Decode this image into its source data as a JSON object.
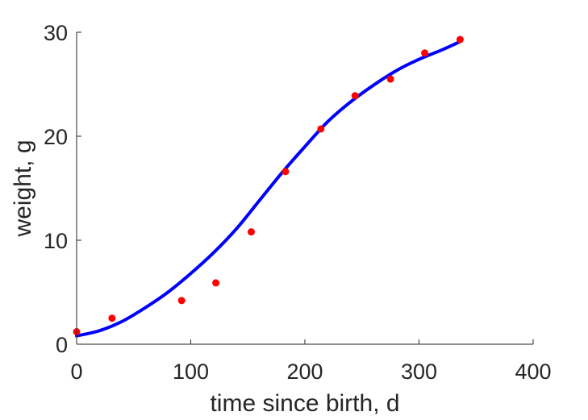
{
  "chart_data": {
    "type": "scatter",
    "title": "",
    "xlabel": "time since birth, d",
    "ylabel": "weight, g",
    "xlim": [
      0,
      400
    ],
    "ylim": [
      0,
      30
    ],
    "xticks": [
      0,
      100,
      200,
      300,
      400
    ],
    "yticks": [
      0,
      10,
      20,
      30
    ],
    "xtick_labels": [
      "0",
      "100",
      "200",
      "300",
      "400"
    ],
    "ytick_labels": [
      "0",
      "10",
      "20",
      "30"
    ],
    "grid": false,
    "series": [
      {
        "kind": "scatter",
        "color": "#ff0000",
        "x": [
          0,
          31,
          92,
          122,
          153,
          183,
          214,
          244,
          275,
          305,
          336
        ],
        "y": [
          1.2,
          2.5,
          4.2,
          5.9,
          10.8,
          16.6,
          20.7,
          23.9,
          25.5,
          28.0,
          29.3
        ]
      },
      {
        "kind": "line",
        "color": "#0000ff",
        "x": [
          0,
          20,
          40,
          60,
          80,
          100,
          120,
          140,
          160,
          180,
          200,
          220,
          240,
          260,
          280,
          300,
          320,
          336
        ],
        "y": [
          0.8,
          1.3,
          2.2,
          3.5,
          5.0,
          6.8,
          8.8,
          11.1,
          13.8,
          16.5,
          19.0,
          21.4,
          23.3,
          24.9,
          26.3,
          27.4,
          28.3,
          29.1
        ]
      }
    ]
  }
}
